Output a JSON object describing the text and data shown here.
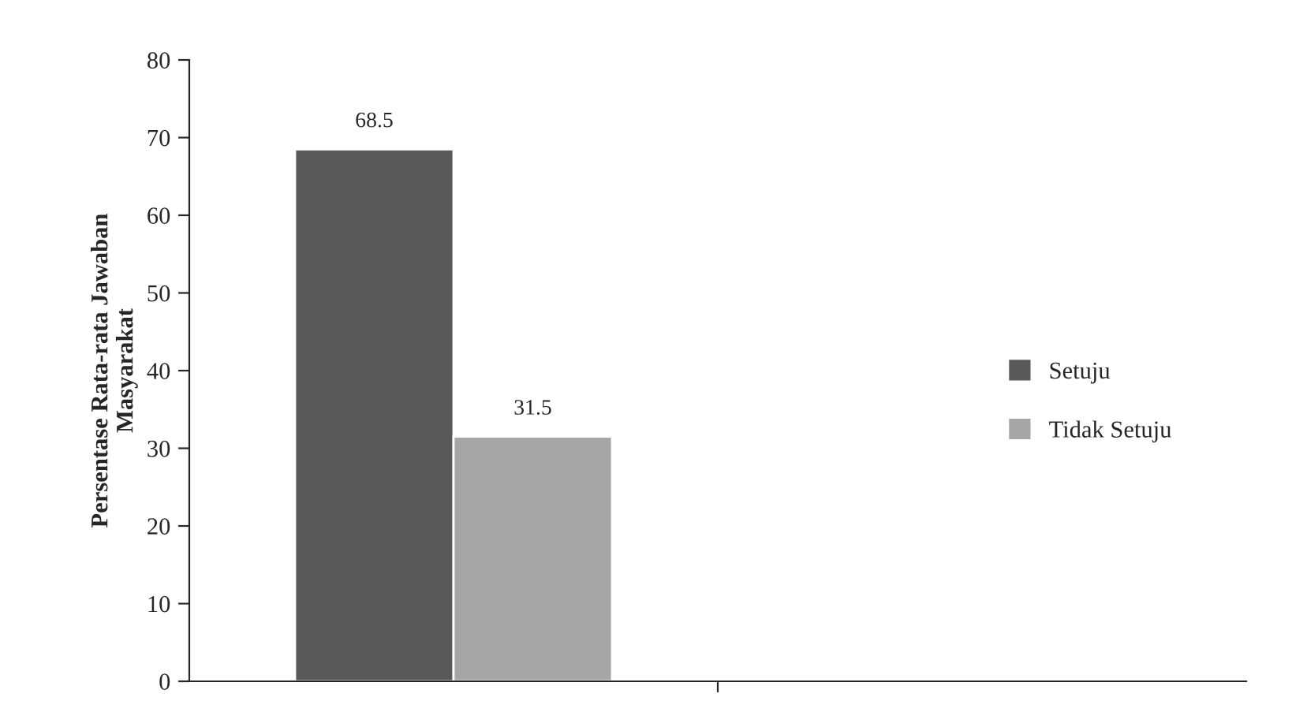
{
  "chart_data": {
    "type": "bar",
    "ylabel": "Persentase Rata-rata Jawaban\nMasyarakat",
    "categories": [
      null,
      null
    ],
    "series": [
      {
        "name": "Setuju",
        "color": "#595959",
        "values": [
          68.5,
          null
        ]
      },
      {
        "name": "Tidak Setuju",
        "color": "#a6a6a6",
        "values": [
          31.5,
          null
        ]
      }
    ],
    "ylim": [
      0,
      80
    ],
    "yticks": [
      0,
      10,
      20,
      30,
      40,
      50,
      60,
      70,
      80
    ],
    "data_labels": true,
    "legend": "right",
    "grid": false
  }
}
